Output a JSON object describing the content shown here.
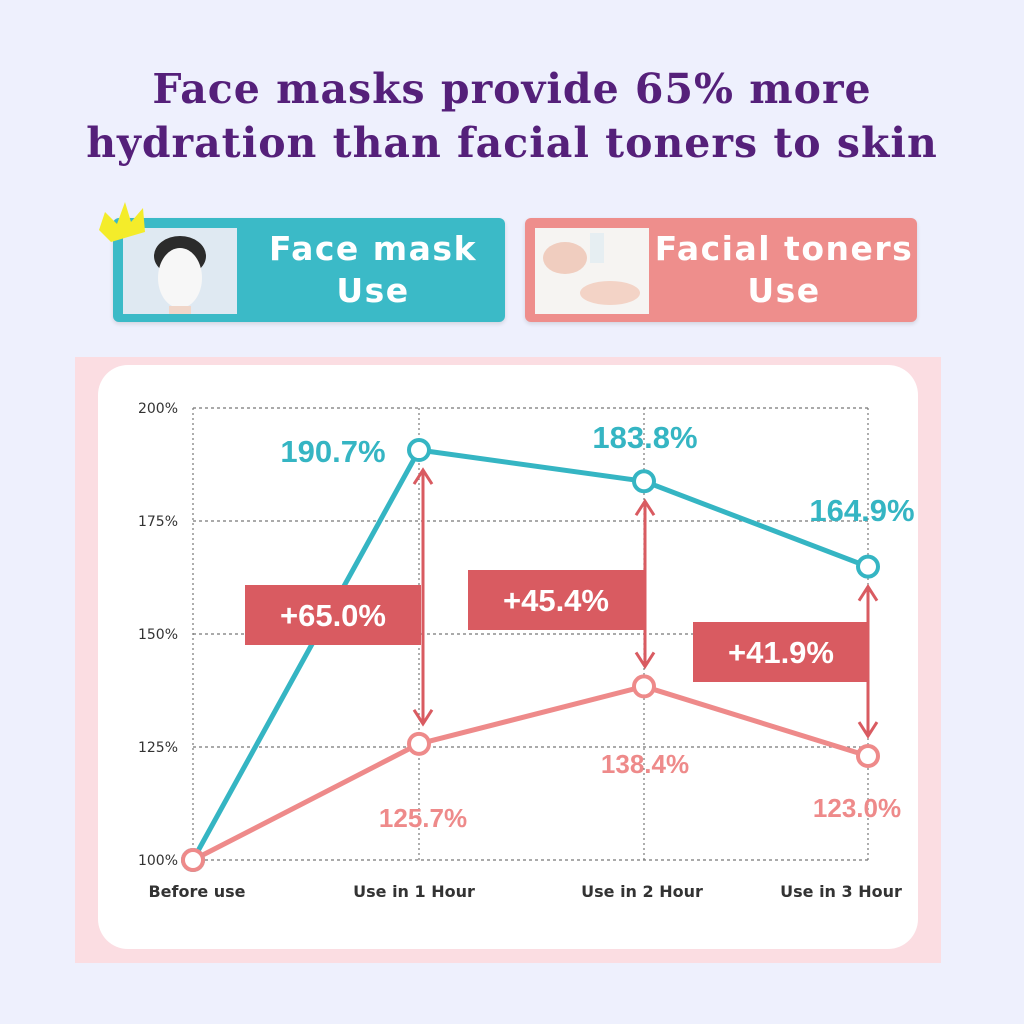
{
  "title_lines": [
    "Face masks provide 65% more",
    "hydration than facial toners to skin"
  ],
  "legend": [
    {
      "label_line1": "Face mask",
      "label_line2": "Use",
      "color": "#3bbac7",
      "icon": "crown-icon"
    },
    {
      "label_line1": "Facial toners",
      "label_line2": "Use",
      "color": "#ee8e8c"
    }
  ],
  "chart_data": {
    "type": "line",
    "categories": [
      "Before use",
      "Use in 1 Hour",
      "Use in 2 Hour",
      "Use in 3 Hour"
    ],
    "y_ticks": [
      "100%",
      "125%",
      "150%",
      "175%",
      "200%"
    ],
    "ylim": [
      100,
      200
    ],
    "grid": true,
    "series": [
      {
        "name": "Face mask Use",
        "color": "#35b5c3",
        "values": [
          100,
          190.7,
          183.8,
          164.9
        ],
        "labels": [
          "",
          "190.7%",
          "183.8%",
          "164.9%"
        ]
      },
      {
        "name": "Facial toners Use",
        "color": "#ee8a8a",
        "values": [
          100,
          125.7,
          138.4,
          123.0
        ],
        "labels": [
          "",
          "125.7%",
          "138.4%",
          "123.0%"
        ]
      }
    ],
    "differences": [
      {
        "category": "Use in 1 Hour",
        "label": "+65.0%"
      },
      {
        "category": "Use in 2 Hour",
        "label": "+45.4%"
      },
      {
        "category": "Use in 3 Hour",
        "label": "+41.9%"
      }
    ],
    "difference_color": "#d95b61"
  }
}
